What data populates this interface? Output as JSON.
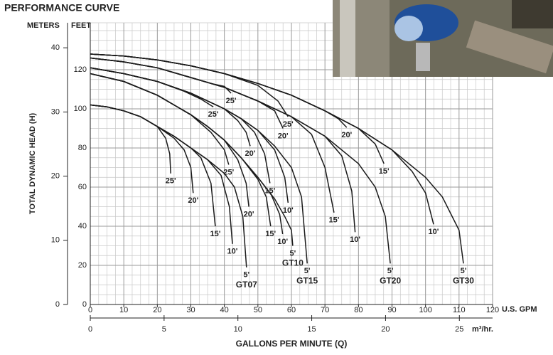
{
  "chart_data": {
    "type": "line",
    "title": "PERFORMANCE CURVE",
    "y_label": "TOTAL DYNAMIC HEAD (H)",
    "y_unit": "FEET",
    "y2_unit": "METERS",
    "x_label": "GALLONS PER MINUTE (Q)",
    "x_unit": "U.S. GPM",
    "x2_unit": "m³/hr.",
    "xlim": [
      0,
      120
    ],
    "xticks": [
      0,
      10,
      20,
      30,
      40,
      50,
      60,
      70,
      80,
      90,
      100,
      110,
      120
    ],
    "x2lim": [
      0,
      27.25
    ],
    "x2ticks": [
      0,
      5,
      10,
      15,
      20,
      25
    ],
    "ylim": [
      0,
      144
    ],
    "yticks": [
      0,
      20,
      40,
      60,
      80,
      100,
      120
    ],
    "y2lim": [
      0,
      43.9
    ],
    "y2ticks": [
      0,
      10,
      20,
      30,
      40
    ],
    "grid": true,
    "color": "#1a1a1a",
    "series": [
      {
        "name": "GT07",
        "curves": [
          {
            "name": "25'",
            "x": [
              0,
              5,
              10,
              15,
              20,
              22.5,
              23.7,
              24
            ],
            "values": [
              102,
              101,
              99,
              96,
              91,
              85,
              77,
              67
            ]
          },
          {
            "name": "20'",
            "x": [
              0,
              5,
              10,
              15,
              20,
              25,
              28,
              30,
              30.7
            ],
            "values": [
              102,
              101,
              99,
              96,
              91,
              85,
              79,
              70,
              57
            ]
          },
          {
            "name": "15'",
            "x": [
              0,
              5,
              10,
              15,
              20,
              25,
              30,
              33,
              36,
              37.3
            ],
            "values": [
              102,
              101,
              99,
              96,
              91,
              86,
              80,
              75,
              62,
              40
            ]
          },
          {
            "name": "10'",
            "x": [
              0,
              5,
              10,
              15,
              20,
              25,
              30,
              35,
              39,
              41.5,
              42.4
            ],
            "values": [
              102,
              101,
              99,
              96,
              91,
              86,
              80,
              74,
              66,
              50,
              31
            ]
          },
          {
            "name": "5'",
            "x": [
              0,
              5,
              10,
              15,
              20,
              25,
              30,
              35,
              40,
              43,
              45.5,
              46.6
            ],
            "values": [
              102,
              101,
              99,
              96,
              91,
              86,
              80,
              74,
              67,
              60,
              45,
              19
            ]
          }
        ]
      },
      {
        "name": "GT10",
        "curves": [
          {
            "name": "25'",
            "x": [
              0,
              10,
              20,
              30,
              36,
              40,
              41.3
            ],
            "values": [
              118,
              114,
              107,
              97,
              88,
              79,
              71.5
            ]
          },
          {
            "name": "20'",
            "x": [
              0,
              10,
              20,
              30,
              35,
              40,
              44,
              46.5,
              47.3
            ],
            "values": [
              118,
              114,
              107,
              97,
              91,
              84,
              74,
              62,
              50
            ]
          },
          {
            "name": "15'",
            "x": [
              0,
              10,
              20,
              30,
              35,
              40,
              45,
              50,
              52.5,
              53.8
            ],
            "values": [
              118,
              114,
              107,
              97,
              91,
              84,
              75,
              64,
              55,
              40
            ]
          },
          {
            "name": "10'",
            "x": [
              0,
              10,
              20,
              30,
              35,
              40,
              45,
              50,
              54,
              56.5,
              57.4
            ],
            "values": [
              118,
              114,
              107,
              97,
              91,
              84,
              75,
              65,
              56,
              46,
              36
            ]
          },
          {
            "name": "5'",
            "x": [
              0,
              10,
              20,
              30,
              35,
              40,
              45,
              50,
              55,
              58,
              60,
              60.4
            ],
            "values": [
              118,
              114,
              107,
              97,
              91,
              84,
              75,
              65,
              54,
              45,
              38,
              30
            ]
          }
        ]
      },
      {
        "name": "GT15",
        "curves": [
          {
            "name": "25'",
            "x": [
              0,
              10,
              20,
              28,
              33,
              36.7
            ],
            "values": [
              121,
              118,
              114,
              109,
              105,
              101
            ]
          },
          {
            "name": "20'",
            "x": [
              0,
              10,
              20,
              30,
              40,
              44,
              46.5,
              47.7
            ],
            "values": [
              121,
              118,
              114,
              108,
              100,
              94,
              88,
              81
            ]
          },
          {
            "name": "15'",
            "x": [
              0,
              10,
              20,
              30,
              40,
              45,
              49,
              52,
              53.6
            ],
            "values": [
              121,
              118,
              114,
              108,
              100,
              95,
              88,
              77,
              62
            ]
          },
          {
            "name": "10'",
            "x": [
              0,
              10,
              20,
              30,
              40,
              45,
              50,
              55,
              58,
              59
            ],
            "values": [
              121,
              118,
              114,
              108,
              100,
              95,
              89,
              79,
              65,
              52
            ]
          },
          {
            "name": "5'",
            "x": [
              0,
              10,
              20,
              30,
              40,
              45,
              50,
              55,
              60,
              63,
              64.7
            ],
            "values": [
              121,
              118,
              114,
              108,
              100,
              95,
              89,
              81,
              70,
              55,
              21
            ]
          }
        ]
      },
      {
        "name": "GT20",
        "curves": [
          {
            "name": "25'",
            "x": [
              0,
              10,
              20,
              30,
              36,
              40,
              42
            ],
            "values": [
              126,
              124,
              121,
              116,
              113,
              111.5,
              108
            ]
          },
          {
            "name": "20'",
            "x": [
              0,
              10,
              20,
              30,
              40,
              50,
              55,
              57.5
            ],
            "values": [
              126,
              124,
              121,
              116,
              111,
              104,
              99,
              90
            ]
          },
          {
            "name": "15'",
            "x": [
              0,
              10,
              20,
              30,
              40,
              50,
              60,
              66,
              70,
              72.7
            ],
            "values": [
              126,
              124,
              121,
              116,
              111,
              104,
              96,
              87,
              70,
              47
            ]
          },
          {
            "name": "10'",
            "x": [
              0,
              10,
              20,
              30,
              40,
              50,
              60,
              70,
              75,
              78,
              79
            ],
            "values": [
              126,
              124,
              121,
              116,
              111,
              104,
              96,
              86,
              76,
              58,
              37
            ]
          },
          {
            "name": "5'",
            "x": [
              0,
              10,
              20,
              30,
              40,
              50,
              60,
              70,
              80,
              85,
              88,
              89.5
            ],
            "values": [
              126,
              124,
              121,
              116,
              111,
              104,
              96,
              86,
              72,
              60,
              45,
              21
            ]
          }
        ]
      },
      {
        "name": "GT30",
        "curves": [
          {
            "name": "25'",
            "x": [
              0,
              10,
              20,
              30,
              40,
              50,
              56,
              59
            ],
            "values": [
              128,
              127,
              125,
              122,
              118,
              112,
              104,
              96
            ]
          },
          {
            "name": "20'",
            "x": [
              0,
              10,
              20,
              30,
              40,
              50,
              60,
              70,
              74,
              76.5
            ],
            "values": [
              128,
              127,
              125,
              122,
              118,
              113,
              107,
              99,
              95,
              90.5
            ]
          },
          {
            "name": "15'",
            "x": [
              0,
              10,
              20,
              30,
              40,
              50,
              60,
              70,
              80,
              85,
              87.6
            ],
            "values": [
              128,
              127,
              125,
              122,
              118,
              113,
              107,
              99,
              90,
              82,
              72
            ]
          },
          {
            "name": "10'",
            "x": [
              0,
              10,
              20,
              30,
              40,
              50,
              60,
              70,
              80,
              90,
              96,
              100,
              102.4
            ],
            "values": [
              128,
              127,
              125,
              122,
              118,
              113,
              107,
              99,
              90,
              79,
              68,
              57,
              41
            ]
          },
          {
            "name": "5'",
            "x": [
              0,
              10,
              20,
              30,
              40,
              50,
              60,
              70,
              80,
              90,
              100,
              105,
              110,
              111.3
            ],
            "values": [
              128,
              127,
              125,
              122,
              118,
              113,
              107,
              99,
              90,
              79,
              65,
              55,
              38,
              21
            ]
          }
        ]
      }
    ]
  }
}
